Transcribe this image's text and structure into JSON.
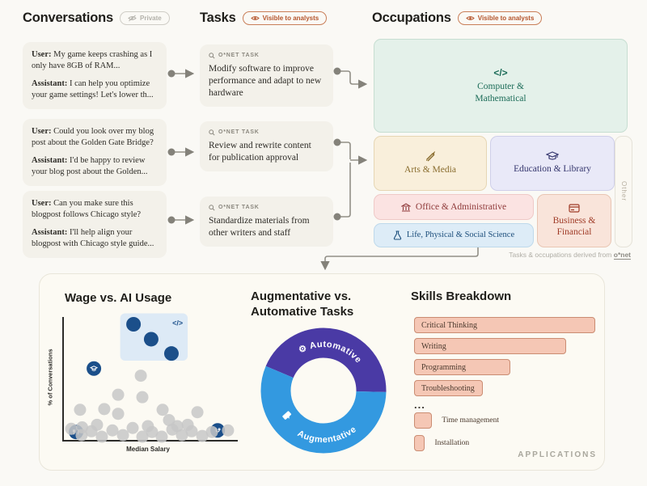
{
  "colors": {
    "background": "#faf9f5",
    "card_bg": "#f3f1ea",
    "rust_accent": "#b5552d",
    "connector_gray": "#84827a",
    "navy": "#1b4f8a",
    "scatter_gray": "#c7c7c7",
    "donut_purple": "#4a3aa5",
    "donut_blue": "#3399e0",
    "skill_salmon": "#f5c7b5"
  },
  "conversations": {
    "title": "Conversations",
    "badge_label": "Private",
    "user_label": "User:",
    "assistant_label": "Assistant:",
    "cards": [
      {
        "user": "My game keeps crashing as I only have 8GB of RAM...",
        "assistant": "I can help you optimize your game settings! Let's lower th..."
      },
      {
        "user": "Could you look over my blog post about the Golden Gate Bridge?",
        "assistant": "I'd be happy to review your blog post about the Golden..."
      },
      {
        "user": "Can you make sure this blogpost follows Chicago style?",
        "assistant": "I'll help align your blogpost with Chicago style guide..."
      }
    ]
  },
  "tasks": {
    "title": "Tasks",
    "badge_label": "Visible to analysts",
    "tag_label": "O*NET TASK",
    "cards": [
      "Modify software to improve performance and adapt to new hardware",
      "Review and rewrite content for publication approval",
      "Standardize materials from other writers and staff"
    ]
  },
  "occupations": {
    "title": "Occupations",
    "badge_label": "Visible to analysts",
    "footnote_text": "Tasks & occupations derived from",
    "footnote_logo": "o*net",
    "boxes": [
      {
        "id": "computer",
        "label": "Computer & Mathematical",
        "icon": "code-icon",
        "icon_glyph": "</>",
        "bg": "#e4f1ea",
        "border": "#c6ded1",
        "text": "#1a6b57"
      },
      {
        "id": "arts",
        "label": "Arts & Media",
        "icon": "pen-icon",
        "bg": "#f9efdb",
        "border": "#e6d6b4",
        "text": "#8a6d2f"
      },
      {
        "id": "education",
        "label": "Education & Library",
        "icon": "graduation-cap-icon",
        "bg": "#e9e9f8",
        "border": "#cfcfe9",
        "text": "#34356d"
      },
      {
        "id": "office",
        "label": "Office & Administrative",
        "icon": "bank-icon",
        "bg": "#fbe3e2",
        "border": "#efc9c7",
        "text": "#8f3a3a"
      },
      {
        "id": "life",
        "label": "Life, Physical & Social Science",
        "icon": "flask-icon",
        "bg": "#ddecf7",
        "border": "#bed9eb",
        "text": "#1d4f7c"
      },
      {
        "id": "business",
        "label": "Business & Financial",
        "icon": "credit-card-icon",
        "bg": "#f9e4da",
        "border": "#e9c6b4",
        "text": "#a03c28"
      },
      {
        "id": "other",
        "label": "Other",
        "bg": "#faf8f2",
        "border": "#e5e2d8",
        "text": "#b5ad9e"
      }
    ]
  },
  "applications": {
    "label": "APPLICATIONS",
    "more_marker": "..."
  },
  "chart_data": [
    {
      "id": "wage_vs_ai_usage",
      "type": "scatter",
      "title": "Wage vs. AI Usage",
      "xlabel": "Median Salary",
      "ylabel": "% of Conversations",
      "axes_numeric": false,
      "note": "stylized scatter; coordinates are percent of plot area (x: salary low-high, y: usage low-high)",
      "highlight_region": {
        "x_pct": 33,
        "y_pct": 66,
        "w_pct": 39,
        "h_pct": 39,
        "color": "#ddeaf6",
        "icon": "code-icon",
        "icon_glyph": "</>"
      },
      "series": [
        {
          "name": "Computer & Mathematical occupations",
          "color": "#1b4f8a",
          "radius": 9,
          "icon": "code-icon",
          "points": [
            [
              40.7,
              96
            ],
            [
              50.9,
              83.7
            ],
            [
              62.6,
              71.9
            ]
          ]
        },
        {
          "name": "Education occupation",
          "color": "#1b4f8a",
          "radius": 9,
          "icon": "graduation-cap-icon",
          "points": [
            [
              17.8,
              59.5
            ]
          ]
        },
        {
          "name": "Food service occupation",
          "color": "#1b4f8a",
          "radius": 9,
          "icon": "utensils-icon",
          "points": [
            [
              7.5,
              7.2
            ]
          ]
        },
        {
          "name": "Health occupation",
          "color": "#1b4f8a",
          "radius": 9,
          "icon": "medical-icon",
          "points": [
            [
              89.3,
              8.5
            ]
          ]
        },
        {
          "name": "Other occupations",
          "color": "#c7c7c7",
          "radius": 7.5,
          "points": [
            [
              4.7,
              9.8
            ],
            [
              10.7,
              4.6
            ],
            [
              16.4,
              7.8
            ],
            [
              22.4,
              3.3
            ],
            [
              28.5,
              8.5
            ],
            [
              34.6,
              4.6
            ],
            [
              40.2,
              10.5
            ],
            [
              45.8,
              3.3
            ],
            [
              51.4,
              7.2
            ],
            [
              57,
              3.3
            ],
            [
              63.1,
              9.2
            ],
            [
              68.7,
              4.6
            ],
            [
              74.3,
              7.8
            ],
            [
              80.4,
              3.9
            ],
            [
              86,
              7.2
            ],
            [
              95.3,
              8.5
            ],
            [
              72,
              13.1
            ],
            [
              19.6,
              13.1
            ],
            [
              9.8,
              25.5
            ],
            [
              23.8,
              26.1
            ],
            [
              31.8,
              22.2
            ],
            [
              57.5,
              25.5
            ],
            [
              61.2,
              17
            ],
            [
              77.6,
              23.5
            ],
            [
              31.8,
              37.9
            ],
            [
              45.8,
              35.9
            ],
            [
              44.9,
              53.6
            ],
            [
              11,
              11
            ],
            [
              49,
              12
            ],
            [
              66,
              12
            ]
          ]
        }
      ]
    },
    {
      "id": "augmentative_vs_automative",
      "type": "pie",
      "donut": true,
      "title": "Augmentative vs. Automative Tasks",
      "start_angle_deg": 157,
      "slices": [
        {
          "label": "Automative",
          "pct": 44,
          "color": "#4a3aa5",
          "icon": "gear-icon",
          "icon_glyph": "⚙"
        },
        {
          "label": "Augmentative",
          "pct": 56,
          "color": "#3399e0",
          "icon": "speech-bubble-icon"
        }
      ]
    },
    {
      "id": "skills_breakdown",
      "type": "bar",
      "title": "Skills Breakdown",
      "categories": [
        "Critical Thinking",
        "Writing",
        "Programming",
        "Troubleshooting"
      ],
      "values": [
        100,
        84,
        53,
        38
      ],
      "more_items": [
        "Time management",
        "Installation"
      ],
      "more_values": [
        10,
        6
      ],
      "bar_color": "#f5c7b5",
      "xlim": [
        0,
        100
      ]
    }
  ]
}
